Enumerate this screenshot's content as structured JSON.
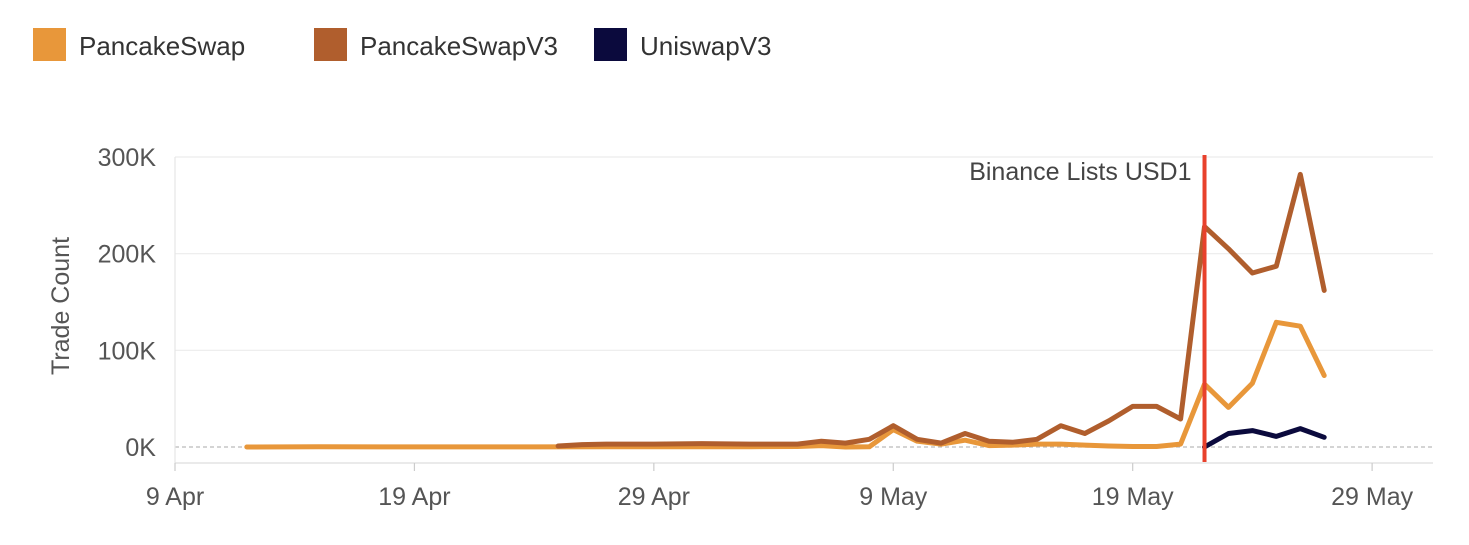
{
  "chart_data": {
    "type": "line",
    "title": "",
    "xlabel": "",
    "ylabel": "Trade Count",
    "x_start": "2025-04-09",
    "x_end": "2025-05-31",
    "x_ticks": [
      {
        "date": "2025-04-09",
        "label": "9 Apr"
      },
      {
        "date": "2025-04-19",
        "label": "19 Apr"
      },
      {
        "date": "2025-04-29",
        "label": "29 Apr"
      },
      {
        "date": "2025-05-09",
        "label": "9 May"
      },
      {
        "date": "2025-05-19",
        "label": "19 May"
      },
      {
        "date": "2025-05-29",
        "label": "29 May"
      }
    ],
    "ylim": [
      -15000,
      300000
    ],
    "y_ticks": [
      {
        "value": 0,
        "label": "0K"
      },
      {
        "value": 100000,
        "label": "100K"
      },
      {
        "value": 200000,
        "label": "200K"
      },
      {
        "value": 300000,
        "label": "300K"
      }
    ],
    "grid": true,
    "legend_position": "top-left",
    "annotation": {
      "date": "2025-05-22",
      "label": "Binance Lists USD1",
      "color": "#e8412c"
    },
    "series": [
      {
        "name": "PancakeSwap",
        "color": "#e8973a",
        "points": [
          [
            "2025-04-12",
            0
          ],
          [
            "2025-04-15",
            200
          ],
          [
            "2025-04-18",
            100
          ],
          [
            "2025-04-21",
            100
          ],
          [
            "2025-04-24",
            100
          ],
          [
            "2025-04-27",
            200
          ],
          [
            "2025-04-30",
            200
          ],
          [
            "2025-05-03",
            300
          ],
          [
            "2025-05-05",
            500
          ],
          [
            "2025-05-06",
            1500
          ],
          [
            "2025-05-07",
            0
          ],
          [
            "2025-05-08",
            200
          ],
          [
            "2025-05-09",
            18000
          ],
          [
            "2025-05-10",
            6000
          ],
          [
            "2025-05-11",
            3000
          ],
          [
            "2025-05-12",
            7000
          ],
          [
            "2025-05-13",
            1500
          ],
          [
            "2025-05-14",
            2000
          ],
          [
            "2025-05-15",
            3000
          ],
          [
            "2025-05-16",
            3000
          ],
          [
            "2025-05-17",
            2000
          ],
          [
            "2025-05-18",
            1000
          ],
          [
            "2025-05-19",
            500
          ],
          [
            "2025-05-20",
            500
          ],
          [
            "2025-05-21",
            3000
          ],
          [
            "2025-05-22",
            65000
          ],
          [
            "2025-05-23",
            41000
          ],
          [
            "2025-05-24",
            66000
          ],
          [
            "2025-05-25",
            129000
          ],
          [
            "2025-05-26",
            125000
          ],
          [
            "2025-05-27",
            74000
          ]
        ]
      },
      {
        "name": "PancakeSwapV3",
        "color": "#b05e2d",
        "points": [
          [
            "2025-04-25",
            1000
          ],
          [
            "2025-04-26",
            2500
          ],
          [
            "2025-04-27",
            3000
          ],
          [
            "2025-04-29",
            3000
          ],
          [
            "2025-05-01",
            3500
          ],
          [
            "2025-05-03",
            3000
          ],
          [
            "2025-05-05",
            3000
          ],
          [
            "2025-05-06",
            6000
          ],
          [
            "2025-05-07",
            4000
          ],
          [
            "2025-05-08",
            8000
          ],
          [
            "2025-05-09",
            22000
          ],
          [
            "2025-05-10",
            8000
          ],
          [
            "2025-05-11",
            4000
          ],
          [
            "2025-05-12",
            14000
          ],
          [
            "2025-05-13",
            6000
          ],
          [
            "2025-05-14",
            5000
          ],
          [
            "2025-05-15",
            8000
          ],
          [
            "2025-05-16",
            22000
          ],
          [
            "2025-05-17",
            14000
          ],
          [
            "2025-05-18",
            27000
          ],
          [
            "2025-05-19",
            42000
          ],
          [
            "2025-05-20",
            42000
          ],
          [
            "2025-05-21",
            29000
          ],
          [
            "2025-05-22",
            228000
          ],
          [
            "2025-05-23",
            205000
          ],
          [
            "2025-05-24",
            180000
          ],
          [
            "2025-05-25",
            187000
          ],
          [
            "2025-05-26",
            282000
          ],
          [
            "2025-05-27",
            162000
          ]
        ]
      },
      {
        "name": "UniswapV3",
        "color": "#0b0a3d",
        "points": [
          [
            "2025-05-22",
            0
          ],
          [
            "2025-05-23",
            14000
          ],
          [
            "2025-05-24",
            17000
          ],
          [
            "2025-05-25",
            11000
          ],
          [
            "2025-05-26",
            19000
          ],
          [
            "2025-05-27",
            10000
          ]
        ]
      }
    ]
  }
}
